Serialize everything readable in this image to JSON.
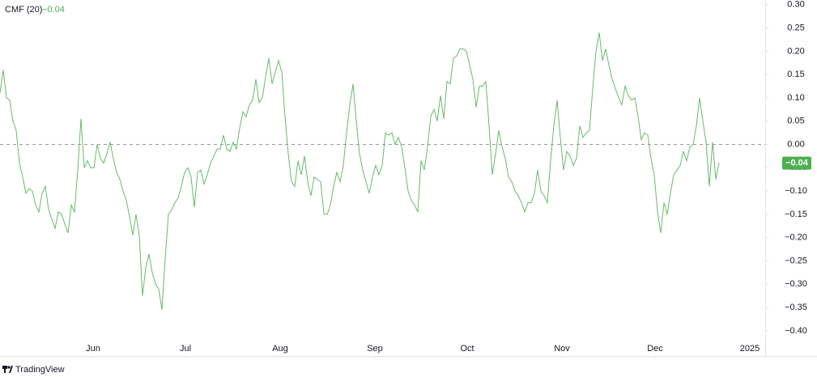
{
  "brand": "TradingView",
  "chart_data": {
    "type": "line",
    "title": "CMF (20)",
    "last_value_label": "−0.04",
    "x": [
      0,
      1,
      2,
      3,
      4,
      5,
      6,
      7,
      8,
      9,
      10,
      11,
      12,
      13,
      14,
      15,
      16,
      17,
      18,
      19,
      20,
      21,
      22,
      23,
      24,
      25,
      26,
      27,
      28,
      29,
      30,
      31,
      32,
      33,
      34,
      35,
      36,
      37,
      38,
      39,
      40,
      41,
      42,
      43,
      44,
      45,
      46,
      47,
      48,
      49,
      50,
      51,
      52,
      53,
      54,
      55,
      56,
      57,
      58,
      59,
      60,
      61,
      62,
      63,
      64,
      65,
      66,
      67,
      68,
      69,
      70,
      71,
      72,
      73,
      74,
      75,
      76,
      77,
      78,
      79,
      80,
      81,
      82,
      83,
      84,
      85,
      86,
      87,
      88,
      89,
      90,
      91,
      92,
      93,
      94,
      95,
      96,
      97,
      98,
      99,
      100,
      101,
      102,
      103,
      104,
      105,
      106,
      107,
      108,
      109,
      110,
      111,
      112,
      113,
      114,
      115,
      116,
      117,
      118,
      119,
      120,
      121,
      122,
      123,
      124,
      125,
      126,
      127,
      128,
      129,
      130,
      131,
      132,
      133,
      134,
      135,
      136,
      137,
      138,
      139,
      140,
      141,
      142,
      143,
      144,
      145,
      146,
      147,
      148,
      149,
      150,
      151,
      152,
      153,
      154,
      155,
      156,
      157,
      158,
      159,
      160,
      161,
      162,
      163,
      164,
      165,
      166,
      167,
      168,
      169,
      170,
      171,
      172,
      173,
      174,
      175,
      176,
      177,
      178,
      179,
      180,
      181,
      182,
      183,
      184,
      185,
      186,
      187,
      188,
      189,
      190,
      191,
      192,
      193,
      194,
      195,
      196,
      197,
      198,
      199,
      200,
      201,
      202,
      203,
      204,
      205,
      206,
      207,
      208,
      209,
      210,
      211,
      212,
      213,
      214,
      215,
      216,
      217,
      218,
      219,
      220,
      221,
      222
    ],
    "series": [
      {
        "name": "CMF (20)",
        "color": "#66bb6a",
        "values": [
          0.11,
          0.16,
          0.1,
          0.095,
          0.05,
          0.03,
          -0.04,
          -0.07,
          -0.105,
          -0.095,
          -0.1,
          -0.13,
          -0.145,
          -0.105,
          -0.09,
          -0.14,
          -0.16,
          -0.18,
          -0.145,
          -0.15,
          -0.17,
          -0.19,
          -0.13,
          -0.145,
          -0.055,
          0.055,
          -0.05,
          -0.035,
          -0.05,
          -0.05,
          0.0,
          -0.03,
          -0.04,
          -0.02,
          0.005,
          -0.03,
          -0.06,
          -0.075,
          -0.1,
          -0.12,
          -0.155,
          -0.195,
          -0.15,
          -0.195,
          -0.325,
          -0.265,
          -0.235,
          -0.275,
          -0.3,
          -0.31,
          -0.355,
          -0.245,
          -0.15,
          -0.14,
          -0.125,
          -0.115,
          -0.09,
          -0.06,
          -0.05,
          -0.07,
          -0.135,
          -0.06,
          -0.055,
          -0.085,
          -0.065,
          -0.04,
          -0.025,
          -0.01,
          -0.01,
          0.02,
          -0.01,
          -0.015,
          0.005,
          -0.01,
          0.035,
          0.07,
          0.06,
          0.085,
          0.095,
          0.14,
          0.09,
          0.1,
          0.145,
          0.185,
          0.13,
          0.155,
          0.18,
          0.155,
          0.06,
          -0.02,
          -0.08,
          -0.09,
          -0.035,
          -0.065,
          -0.025,
          -0.08,
          -0.11,
          -0.07,
          -0.075,
          -0.08,
          -0.15,
          -0.15,
          -0.13,
          -0.09,
          -0.06,
          -0.08,
          -0.045,
          0.025,
          0.085,
          0.13,
          0.05,
          -0.02,
          -0.055,
          -0.08,
          -0.105,
          -0.07,
          -0.045,
          -0.065,
          -0.045,
          0.025,
          0.02,
          0.025,
          0.0,
          0.015,
          -0.005,
          -0.05,
          -0.1,
          -0.12,
          -0.13,
          -0.145,
          -0.035,
          -0.055,
          -0.005,
          0.06,
          0.075,
          0.05,
          0.105,
          0.055,
          0.135,
          0.13,
          0.185,
          0.19,
          0.205,
          0.205,
          0.2,
          0.17,
          0.14,
          0.08,
          0.125,
          0.125,
          0.135,
          0.04,
          -0.065,
          -0.02,
          0.03,
          -0.005,
          -0.03,
          -0.07,
          -0.08,
          -0.1,
          -0.11,
          -0.125,
          -0.145,
          -0.125,
          -0.125,
          -0.105,
          -0.055,
          -0.1,
          -0.11,
          -0.125,
          -0.035,
          0.04,
          0.095,
          0.015,
          -0.055,
          -0.015,
          -0.025,
          -0.045,
          -0.03,
          0.04,
          0.015,
          0.025,
          0.03,
          0.12,
          0.2,
          0.24,
          0.18,
          0.205,
          0.17,
          0.14,
          0.12,
          0.1,
          0.085,
          0.125,
          0.105,
          0.095,
          0.1,
          0.06,
          0.01,
          0.025,
          0.02,
          -0.03,
          -0.065,
          -0.145,
          -0.19,
          -0.125,
          -0.15,
          -0.105,
          -0.065,
          -0.055,
          -0.045,
          -0.015,
          -0.035,
          -0.005,
          0.0,
          0.04,
          0.1,
          0.05,
          0.005,
          -0.09,
          0.005,
          -0.075,
          -0.04
        ]
      }
    ],
    "xlim": [
      0,
      236.25
    ],
    "xticks": [
      {
        "value": 28.75,
        "label": "Jun"
      },
      {
        "value": 57.25,
        "label": "Jul"
      },
      {
        "value": 86.5,
        "label": "Aug"
      },
      {
        "value": 115.75,
        "label": "Sep"
      },
      {
        "value": 144.25,
        "label": "Oct"
      },
      {
        "value": 173.5,
        "label": "Nov"
      },
      {
        "value": 202.25,
        "label": "Dec"
      },
      {
        "value": 231.5,
        "label": "2025"
      }
    ],
    "ylim": [
      -0.454,
      0.31
    ],
    "yticks": [
      {
        "value": 0.3,
        "label": "0.30"
      },
      {
        "value": 0.25,
        "label": "0.25"
      },
      {
        "value": 0.2,
        "label": "0.20"
      },
      {
        "value": 0.15,
        "label": "0.15"
      },
      {
        "value": 0.1,
        "label": "0.10"
      },
      {
        "value": 0.05,
        "label": "0.05"
      },
      {
        "value": 0,
        "label": "0.00"
      },
      {
        "value": -0.05,
        "label": "−0.05"
      },
      {
        "value": -0.1,
        "label": "−0.10"
      },
      {
        "value": -0.15,
        "label": "−0.15"
      },
      {
        "value": -0.2,
        "label": "−0.20"
      },
      {
        "value": -0.25,
        "label": "−0.25"
      },
      {
        "value": -0.3,
        "label": "−0.30"
      },
      {
        "value": -0.35,
        "label": "−0.35"
      },
      {
        "value": -0.4,
        "label": "−0.40"
      }
    ],
    "zero_line": 0
  }
}
